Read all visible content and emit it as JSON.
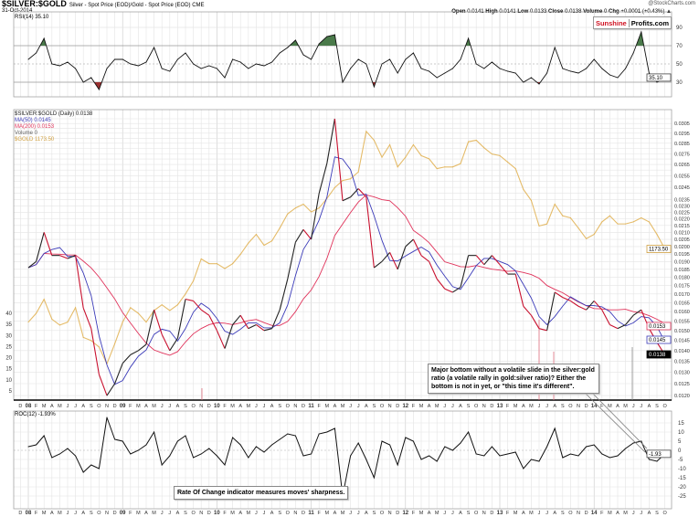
{
  "header": {
    "symbol": "$SILVER:$GOLD",
    "description": "Silver - Spot Price (EOD)/Gold - Spot Price (EOD)  CME",
    "date": "31-Oct-2014",
    "credit": "@StockCharts.com",
    "open_label": "Open",
    "open": "0.0141",
    "high_label": "High",
    "high": "0.0141",
    "low_label": "Low",
    "low": "0.0133",
    "close_label": "Close",
    "close": "0.0138",
    "volume_label": "Volume",
    "volume": "0",
    "chg_label": "Chg",
    "chg": "+0.0001 (+0.43%) ▲"
  },
  "logo": {
    "part1": "Sunshine",
    "part2": "Profits.com"
  },
  "annotations": {
    "main_note": "Major bottom without a volatile slide in the silver:gold ratio (a volatile rally in gold:silver ratio)? Either the bottom is not in yet, or \"this time it's different\".",
    "roc_note": "Rate Of Change indicator measures moves' sharpness."
  },
  "colors": {
    "ratio_up": "#222222",
    "ratio_down": "#c8102e",
    "ma50": "#3a3ab8",
    "ma200": "#e0325a",
    "gold": "#e0b050",
    "rsi_high": "#4a7a4a",
    "rsi_low": "#9a3030",
    "grid": "#e4e4e4"
  },
  "chart_data": [
    {
      "type": "line",
      "panel": "rsi",
      "legend": "RSI(14) 35.10",
      "last_label": "35.10",
      "x_start": "2008-01",
      "x_step": "month",
      "values": [
        55,
        62,
        78,
        50,
        48,
        52,
        45,
        30,
        35,
        22,
        45,
        55,
        55,
        50,
        48,
        52,
        68,
        45,
        42,
        55,
        62,
        50,
        45,
        48,
        45,
        35,
        55,
        52,
        45,
        50,
        48,
        52,
        62,
        68,
        76,
        60,
        55,
        72,
        80,
        82,
        30,
        45,
        55,
        50,
        25,
        50,
        55,
        40,
        55,
        62,
        45,
        42,
        35,
        40,
        45,
        55,
        78,
        50,
        45,
        52,
        45,
        42,
        40,
        30,
        35,
        28,
        40,
        68,
        45,
        42,
        40,
        45,
        55,
        45,
        38,
        35,
        45,
        62,
        85,
        40,
        30,
        35.1
      ],
      "levels": [
        70,
        30
      ],
      "y_ticks": [
        "90",
        "70",
        "50",
        "30"
      ],
      "y_tick_values": [
        90,
        70,
        50,
        30
      ]
    },
    {
      "type": "line",
      "panel": "price",
      "scale": "log",
      "ylim": [
        0.012,
        0.031
      ],
      "y_tick_step": 0.0005,
      "x_start": "2008-01",
      "x_step": "month",
      "legend": [
        {
          "name": "$SILVER:$GOLD (Daily) 0.0138",
          "color": "#222222"
        },
        {
          "name": "MA(50) 0.0145",
          "color": "#3a3ab8"
        },
        {
          "name": "MA(200) 0.0153",
          "color": "#e0325a"
        },
        {
          "name": "Volume 0",
          "color": "#666666"
        },
        {
          "name": "$GOLD 1173.50",
          "color": "#e0b050"
        }
      ],
      "ratio": [
        0.0186,
        0.019,
        0.021,
        0.0194,
        0.0194,
        0.0192,
        0.0194,
        0.0162,
        0.0151,
        0.0129,
        0.012,
        0.0125,
        0.0134,
        0.0138,
        0.014,
        0.0143,
        0.0161,
        0.0148,
        0.014,
        0.0146,
        0.0167,
        0.0166,
        0.0161,
        0.0158,
        0.015,
        0.0141,
        0.0153,
        0.0158,
        0.0151,
        0.0153,
        0.015,
        0.0151,
        0.0161,
        0.0179,
        0.0203,
        0.0212,
        0.0205,
        0.024,
        0.0266,
        0.031,
        0.0234,
        0.0237,
        0.0244,
        0.0237,
        0.0186,
        0.019,
        0.0196,
        0.0185,
        0.02,
        0.0205,
        0.0194,
        0.019,
        0.0179,
        0.0173,
        0.0171,
        0.0174,
        0.0194,
        0.0194,
        0.0188,
        0.0194,
        0.0188,
        0.0182,
        0.0182,
        0.0163,
        0.0158,
        0.0151,
        0.015,
        0.0171,
        0.0168,
        0.0166,
        0.0163,
        0.0161,
        0.0166,
        0.0161,
        0.0153,
        0.0151,
        0.0153,
        0.0158,
        0.0161,
        0.0151,
        0.0144,
        0.0138
      ],
      "gold": [
        890,
        920,
        970,
        900,
        880,
        890,
        940,
        840,
        830,
        810,
        760,
        820,
        890,
        940,
        920,
        890,
        930,
        950,
        930,
        950,
        990,
        1040,
        1130,
        1110,
        1110,
        1090,
        1110,
        1150,
        1200,
        1240,
        1190,
        1210,
        1270,
        1340,
        1370,
        1390,
        1350,
        1370,
        1420,
        1480,
        1520,
        1530,
        1570,
        1830,
        1770,
        1660,
        1740,
        1600,
        1660,
        1740,
        1670,
        1650,
        1590,
        1600,
        1600,
        1620,
        1760,
        1770,
        1720,
        1680,
        1670,
        1630,
        1590,
        1470,
        1410,
        1280,
        1290,
        1390,
        1330,
        1320,
        1270,
        1220,
        1240,
        1300,
        1330,
        1290,
        1290,
        1300,
        1320,
        1300,
        1240,
        1173.5
      ],
      "last_labels": {
        "ma200": "0.0153",
        "ma50": "0.0145",
        "ratio": "0.0138",
        "gold": "1173.50"
      },
      "left_ticks": [
        "40",
        "35",
        "30",
        "25",
        "20",
        "15",
        "10",
        "5"
      ],
      "left_tick_values": [
        40,
        35,
        30,
        25,
        20,
        15,
        10,
        5
      ]
    },
    {
      "type": "line",
      "panel": "roc",
      "legend": "ROC(12) -1.93%",
      "last_label": "-1.93",
      "x_start": "2008-01",
      "x_step": "month",
      "values": [
        2,
        3,
        8,
        -4,
        -2,
        1,
        -3,
        -12,
        -8,
        -10,
        18,
        6,
        5,
        -2,
        0,
        3,
        10,
        -8,
        -3,
        5,
        8,
        -4,
        -2,
        1,
        -3,
        -8,
        7,
        3,
        -4,
        2,
        -1,
        3,
        6,
        9,
        8,
        -3,
        -2,
        9,
        10,
        12,
        -25,
        -3,
        4,
        -5,
        -15,
        5,
        3,
        -8,
        7,
        5,
        -5,
        -3,
        -6,
        2,
        0,
        4,
        10,
        -2,
        -3,
        2,
        -3,
        -2,
        -1,
        -10,
        -5,
        -6,
        2,
        12,
        -4,
        -2,
        -3,
        2,
        3,
        -2,
        -4,
        -3,
        1,
        4,
        5,
        -5,
        -6,
        -1.93
      ],
      "y_ticks": [
        "15",
        "10",
        "5",
        "0",
        "-5",
        "-10",
        "-15",
        "-20",
        "-25"
      ],
      "y_tick_values": [
        15,
        10,
        5,
        0,
        -5,
        -10,
        -15,
        -20,
        -25
      ]
    }
  ],
  "x_axis": {
    "first_label": "D",
    "month_letters": [
      "J",
      "F",
      "M",
      "A",
      "M",
      "J",
      "J",
      "A",
      "S",
      "O",
      "N",
      "D"
    ],
    "year_labels": [
      "08",
      "09",
      "10",
      "11",
      "12",
      "13",
      "14"
    ],
    "months_shown": 82
  }
}
